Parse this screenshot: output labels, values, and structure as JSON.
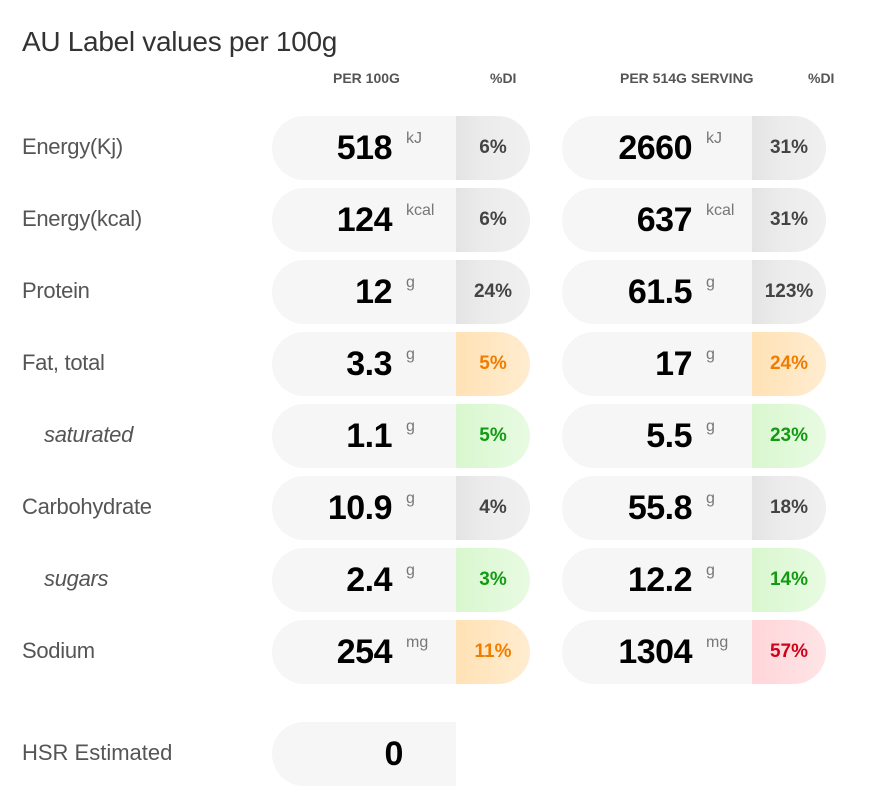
{
  "title": "AU Label values per 100g",
  "headers": {
    "per100": "PER 100G",
    "di1": "%DI",
    "perServing": "PER 514G SERVING",
    "di2": "%DI"
  },
  "rows": [
    {
      "label": "Energy(Kj)",
      "sub": false,
      "v100": "518",
      "u100": "kJ",
      "d100": "6%",
      "c100": "grey",
      "vs": "2660",
      "us": "kJ",
      "ds": "31%",
      "cs": "grey"
    },
    {
      "label": "Energy(kcal)",
      "sub": false,
      "v100": "124",
      "u100": "kcal",
      "d100": "6%",
      "c100": "grey",
      "vs": "637",
      "us": "kcal",
      "ds": "31%",
      "cs": "grey"
    },
    {
      "label": "Protein",
      "sub": false,
      "v100": "12",
      "u100": "g",
      "d100": "24%",
      "c100": "grey",
      "vs": "61.5",
      "us": "g",
      "ds": "123%",
      "cs": "grey"
    },
    {
      "label": "Fat, total",
      "sub": false,
      "v100": "3.3",
      "u100": "g",
      "d100": "5%",
      "c100": "orange",
      "vs": "17",
      "us": "g",
      "ds": "24%",
      "cs": "orange"
    },
    {
      "label": "saturated",
      "sub": true,
      "v100": "1.1",
      "u100": "g",
      "d100": "5%",
      "c100": "green",
      "vs": "5.5",
      "us": "g",
      "ds": "23%",
      "cs": "green"
    },
    {
      "label": "Carbohydrate",
      "sub": false,
      "v100": "10.9",
      "u100": "g",
      "d100": "4%",
      "c100": "grey",
      "vs": "55.8",
      "us": "g",
      "ds": "18%",
      "cs": "grey"
    },
    {
      "label": "sugars",
      "sub": true,
      "v100": "2.4",
      "u100": "g",
      "d100": "3%",
      "c100": "green",
      "vs": "12.2",
      "us": "g",
      "ds": "14%",
      "cs": "green"
    },
    {
      "label": "Sodium",
      "sub": false,
      "v100": "254",
      "u100": "mg",
      "d100": "11%",
      "c100": "orange",
      "vs": "1304",
      "us": "mg",
      "ds": "57%",
      "cs": "red"
    }
  ],
  "hsr": {
    "label": "HSR Estimated",
    "value": "0"
  },
  "colors": {
    "orange": "#f07c00",
    "green": "#129b12",
    "red": "#d0021b",
    "grey": "#444444"
  }
}
